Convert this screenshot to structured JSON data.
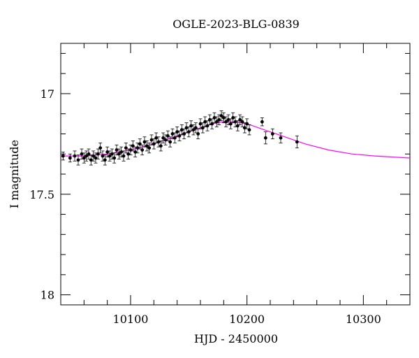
{
  "chart_data": {
    "type": "scatter",
    "title": "OGLE-2023-BLG-0839",
    "xlabel": "HJD - 2450000",
    "ylabel": "I magnitude",
    "xlim": [
      10040,
      10340
    ],
    "ylim": [
      18.05,
      16.75
    ],
    "y_inverted": true,
    "x_ticks": [
      10100,
      10200,
      10300
    ],
    "x_tick_labels": [
      "10100",
      "10200",
      "10300"
    ],
    "x_minor_step": 20,
    "y_ticks": [
      17,
      17.5,
      18
    ],
    "y_tick_labels": [
      "17",
      "17.5",
      "18"
    ],
    "y_minor_step": 0.1,
    "grid": false,
    "legend": "none",
    "series": [
      {
        "kind": "points",
        "color": "#000000",
        "x": [
          10042,
          10048,
          10052,
          10055,
          10058,
          10060,
          10062,
          10064,
          10066,
          10068,
          10070,
          10072,
          10074,
          10076,
          10078,
          10080,
          10082,
          10084,
          10086,
          10088,
          10090,
          10092,
          10094,
          10096,
          10098,
          10100,
          10102,
          10104,
          10106,
          10108,
          10110,
          10112,
          10114,
          10116,
          10118,
          10120,
          10122,
          10124,
          10126,
          10128,
          10130,
          10132,
          10134,
          10136,
          10138,
          10140,
          10142,
          10144,
          10146,
          10148,
          10150,
          10152,
          10154,
          10156,
          10158,
          10160,
          10162,
          10164,
          10166,
          10168,
          10170,
          10172,
          10174,
          10176,
          10178,
          10180,
          10182,
          10184,
          10186,
          10188,
          10190,
          10192,
          10194,
          10196,
          10198,
          10200,
          10202,
          10213,
          10216,
          10222,
          10229,
          10243
        ],
        "y": [
          17.31,
          17.32,
          17.31,
          17.33,
          17.3,
          17.32,
          17.31,
          17.3,
          17.33,
          17.31,
          17.32,
          17.3,
          17.27,
          17.31,
          17.33,
          17.29,
          17.31,
          17.3,
          17.32,
          17.28,
          17.3,
          17.29,
          17.31,
          17.27,
          17.3,
          17.28,
          17.26,
          17.29,
          17.27,
          17.25,
          17.28,
          17.24,
          17.26,
          17.27,
          17.23,
          17.25,
          17.22,
          17.24,
          17.26,
          17.22,
          17.23,
          17.21,
          17.24,
          17.2,
          17.22,
          17.19,
          17.21,
          17.18,
          17.2,
          17.17,
          17.19,
          17.16,
          17.18,
          17.17,
          17.2,
          17.15,
          17.17,
          17.14,
          17.16,
          17.13,
          17.15,
          17.12,
          17.14,
          17.13,
          17.11,
          17.12,
          17.14,
          17.13,
          17.15,
          17.12,
          17.14,
          17.16,
          17.13,
          17.14,
          17.17,
          17.15,
          17.18,
          17.14,
          17.22,
          17.2,
          17.22,
          17.24
        ],
        "yerr": [
          0.02,
          0.02,
          0.025,
          0.025,
          0.025,
          0.025,
          0.025,
          0.025,
          0.025,
          0.025,
          0.025,
          0.025,
          0.025,
          0.025,
          0.025,
          0.025,
          0.025,
          0.025,
          0.025,
          0.025,
          0.025,
          0.025,
          0.025,
          0.025,
          0.025,
          0.025,
          0.025,
          0.025,
          0.025,
          0.025,
          0.025,
          0.025,
          0.025,
          0.025,
          0.025,
          0.025,
          0.025,
          0.025,
          0.025,
          0.025,
          0.025,
          0.025,
          0.025,
          0.025,
          0.025,
          0.025,
          0.025,
          0.025,
          0.025,
          0.025,
          0.025,
          0.025,
          0.025,
          0.025,
          0.025,
          0.025,
          0.025,
          0.025,
          0.025,
          0.025,
          0.025,
          0.025,
          0.025,
          0.025,
          0.025,
          0.025,
          0.025,
          0.025,
          0.025,
          0.025,
          0.025,
          0.025,
          0.025,
          0.025,
          0.025,
          0.025,
          0.025,
          0.02,
          0.03,
          0.025,
          0.025,
          0.03
        ]
      },
      {
        "kind": "line",
        "color": "#ff00ff",
        "x": [
          10040,
          10060,
          10080,
          10100,
          10120,
          10140,
          10160,
          10170,
          10180,
          10190,
          10200,
          10210,
          10220,
          10230,
          10250,
          10270,
          10290,
          10310,
          10340
        ],
        "y": [
          17.31,
          17.31,
          17.3,
          17.28,
          17.25,
          17.21,
          17.17,
          17.15,
          17.14,
          17.14,
          17.15,
          17.17,
          17.19,
          17.21,
          17.25,
          17.28,
          17.3,
          17.31,
          17.32
        ]
      }
    ]
  }
}
